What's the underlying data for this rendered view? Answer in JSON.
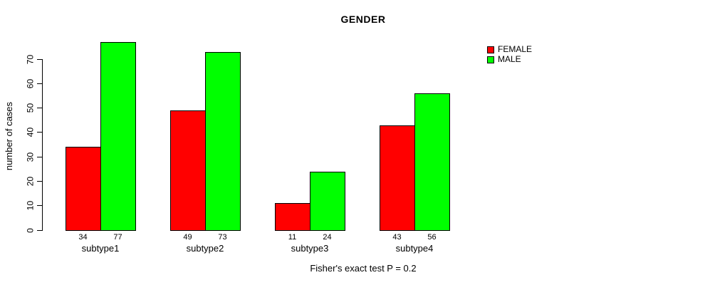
{
  "chart_data": {
    "type": "bar",
    "title": "GENDER",
    "ylabel": "number of cases",
    "xlabel": "",
    "caption": "Fisher's exact test P = 0.2",
    "categories": [
      "subtype1",
      "subtype2",
      "subtype3",
      "subtype4"
    ],
    "series": [
      {
        "name": "FEMALE",
        "color": "#ff0000",
        "values": [
          34,
          49,
          11,
          43
        ]
      },
      {
        "name": "MALE",
        "color": "#00ff00",
        "values": [
          77,
          73,
          24,
          56
        ]
      }
    ],
    "bar_value_labels_shown": true,
    "y_ticks": [
      0,
      10,
      20,
      30,
      40,
      50,
      60,
      70
    ],
    "ylim": [
      0,
      80
    ],
    "grid": false,
    "legend_position": "top-right",
    "axis_color": "#000000",
    "text_color": "#000000",
    "background": "#ffffff"
  }
}
